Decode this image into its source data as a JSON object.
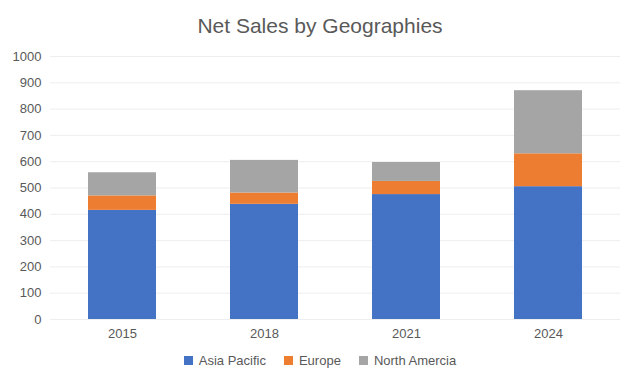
{
  "chart_data": {
    "type": "bar",
    "title": "Net Sales by Geographies",
    "stacked": true,
    "grid": true,
    "legend": "bottom",
    "categories": [
      "2015",
      "2018",
      "2021",
      "2024"
    ],
    "series": [
      {
        "name": "Asia Pacific",
        "color": "#4472c4",
        "values": [
          415,
          438,
          475,
          505
        ]
      },
      {
        "name": "Europe",
        "color": "#ed7d31",
        "values": [
          55,
          43,
          50,
          125
        ]
      },
      {
        "name": "North Amercia",
        "color": "#a5a5a5",
        "values": [
          88,
          124,
          72,
          240
        ]
      }
    ],
    "ylim": [
      0,
      1000
    ],
    "yticks": [
      0,
      100,
      200,
      300,
      400,
      500,
      600,
      700,
      800,
      900,
      1000
    ]
  }
}
